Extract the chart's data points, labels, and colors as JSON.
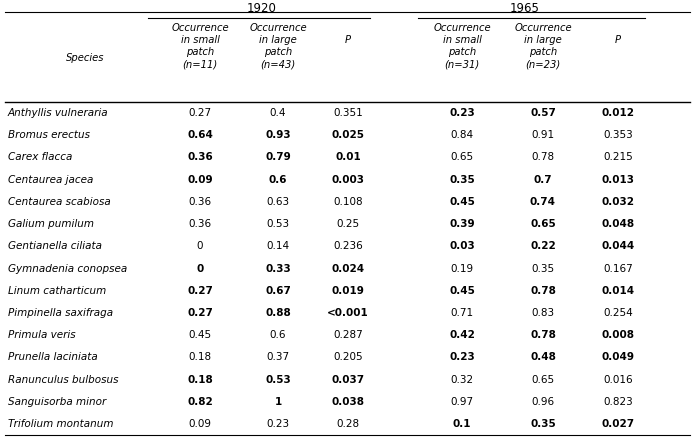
{
  "species": [
    "Anthyllis vulneraria",
    "Bromus erectus",
    "Carex flacca",
    "Centaurea jacea",
    "Centaurea scabiosa",
    "Galium pumilum",
    "Gentianella ciliata",
    "Gymnadenia conopsea",
    "Linum catharticum",
    "Pimpinella saxifraga",
    "Primula veris",
    "Prunella laciniata",
    "Ranunculus bulbosus",
    "Sanguisorba minor",
    "Trifolium montanum"
  ],
  "data_1920": [
    [
      "0.27",
      "0.4",
      "0.351",
      false,
      false,
      false
    ],
    [
      "0.64",
      "0.93",
      "0.025",
      true,
      true,
      true
    ],
    [
      "0.36",
      "0.79",
      "0.01",
      true,
      true,
      true
    ],
    [
      "0.09",
      "0.6",
      "0.003",
      true,
      true,
      true
    ],
    [
      "0.36",
      "0.63",
      "0.108",
      false,
      false,
      false
    ],
    [
      "0.36",
      "0.53",
      "0.25",
      false,
      false,
      false
    ],
    [
      "0",
      "0.14",
      "0.236",
      false,
      false,
      false
    ],
    [
      "0",
      "0.33",
      "0.024",
      true,
      true,
      true
    ],
    [
      "0.27",
      "0.67",
      "0.019",
      true,
      true,
      true
    ],
    [
      "0.27",
      "0.88",
      "<0.001",
      true,
      true,
      true
    ],
    [
      "0.45",
      "0.6",
      "0.287",
      false,
      false,
      false
    ],
    [
      "0.18",
      "0.37",
      "0.205",
      false,
      false,
      false
    ],
    [
      "0.18",
      "0.53",
      "0.037",
      true,
      true,
      true
    ],
    [
      "0.82",
      "1",
      "0.038",
      true,
      true,
      true
    ],
    [
      "0.09",
      "0.23",
      "0.28",
      false,
      false,
      false
    ]
  ],
  "data_1965": [
    [
      "0.23",
      "0.57",
      "0.012",
      true,
      true,
      true
    ],
    [
      "0.84",
      "0.91",
      "0.353",
      false,
      false,
      false
    ],
    [
      "0.65",
      "0.78",
      "0.215",
      false,
      false,
      false
    ],
    [
      "0.35",
      "0.7",
      "0.013",
      true,
      true,
      true
    ],
    [
      "0.45",
      "0.74",
      "0.032",
      true,
      true,
      true
    ],
    [
      "0.39",
      "0.65",
      "0.048",
      true,
      true,
      true
    ],
    [
      "0.03",
      "0.22",
      "0.044",
      true,
      true,
      true
    ],
    [
      "0.19",
      "0.35",
      "0.167",
      false,
      false,
      false
    ],
    [
      "0.45",
      "0.78",
      "0.014",
      true,
      true,
      true
    ],
    [
      "0.71",
      "0.83",
      "0.254",
      false,
      false,
      false
    ],
    [
      "0.42",
      "0.78",
      "0.008",
      true,
      true,
      true
    ],
    [
      "0.23",
      "0.48",
      "0.049",
      true,
      true,
      true
    ],
    [
      "0.32",
      "0.65",
      "0.016",
      false,
      false,
      false
    ],
    [
      "0.97",
      "0.96",
      "0.823",
      false,
      false,
      false
    ],
    [
      "0.1",
      "0.35",
      "0.027",
      true,
      true,
      true
    ]
  ],
  "year_headers": [
    "1920",
    "1965"
  ],
  "species_header": "Species",
  "col_headers_1920_line1": [
    "Occurrence",
    "Occurrence",
    ""
  ],
  "col_headers_1920_line2": [
    "in small",
    "in large",
    "P"
  ],
  "col_headers_1920_line3": [
    "patch",
    "patch",
    ""
  ],
  "col_headers_1920_line4": [
    "(n=11)",
    "(n=43)",
    ""
  ],
  "col_headers_1965_line1": [
    "Occurrence",
    "Occurrence",
    ""
  ],
  "col_headers_1965_line2": [
    "in small",
    "in large",
    "P"
  ],
  "col_headers_1965_line3": [
    "patch",
    "patch",
    ""
  ],
  "col_headers_1965_line4": [
    "(n=31)",
    "(n=23)",
    ""
  ],
  "bg_color": "#ffffff",
  "text_color": "#000000",
  "line_color": "#000000",
  "fig_width": 6.95,
  "fig_height": 4.4,
  "dpi": 100
}
